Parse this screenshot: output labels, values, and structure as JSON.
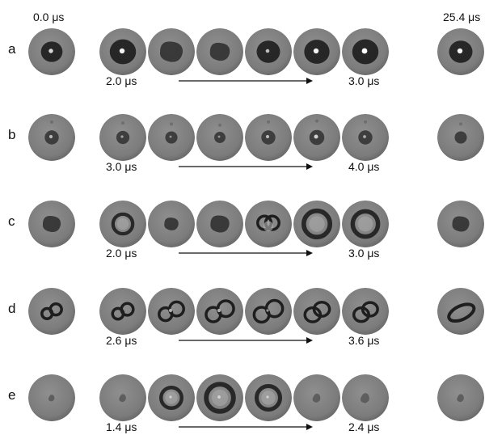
{
  "header": {
    "start_time": "0.0 μs",
    "end_time": "25.4 μs"
  },
  "rows": [
    {
      "label": "a",
      "time_start": "2.0 μs",
      "time_end": "3.0 μs",
      "frames": [
        {
          "kind": "dark",
          "size": 0.46,
          "glint": 0.7
        },
        {
          "kind": "dark",
          "size": 0.56,
          "glint": 0.9
        },
        {
          "kind": "blob",
          "size": 0.48,
          "glint": 0
        },
        {
          "kind": "blob",
          "size": 0.42,
          "glint": 0
        },
        {
          "kind": "dark",
          "size": 0.5,
          "glint": 0.5
        },
        {
          "kind": "dark",
          "size": 0.54,
          "glint": 0.9
        },
        {
          "kind": "dark",
          "size": 0.56,
          "glint": 1.0
        },
        {
          "kind": "dark",
          "size": 0.5,
          "glint": 0.9
        }
      ]
    },
    {
      "label": "b",
      "time_start": "3.0 μs",
      "time_end": "4.0 μs",
      "frames": [
        {
          "kind": "small",
          "size": 0.3,
          "glint": 0.4
        },
        {
          "kind": "small",
          "size": 0.28,
          "glint": 0.2
        },
        {
          "kind": "small",
          "size": 0.26,
          "glint": 0.1
        },
        {
          "kind": "small",
          "size": 0.24,
          "glint": 0.1
        },
        {
          "kind": "small",
          "size": 0.3,
          "glint": 0.4
        },
        {
          "kind": "small",
          "size": 0.32,
          "glint": 0.6
        },
        {
          "kind": "small",
          "size": 0.3,
          "glint": 0.3
        },
        {
          "kind": "small",
          "size": 0.26,
          "glint": 0
        }
      ]
    },
    {
      "label": "c",
      "time_start": "2.0 μs",
      "time_end": "3.0 μs",
      "frames": [
        {
          "kind": "blob",
          "size": 0.38,
          "glint": 0
        },
        {
          "kind": "ring",
          "size": 0.42,
          "glint": 0
        },
        {
          "kind": "blob",
          "size": 0.3,
          "glint": 0
        },
        {
          "kind": "blob",
          "size": 0.4,
          "glint": 0
        },
        {
          "kind": "heart",
          "size": 0.48,
          "glint": 0
        },
        {
          "kind": "ring",
          "size": 0.56,
          "glint": 0
        },
        {
          "kind": "ring",
          "size": 0.54,
          "glint": 0
        },
        {
          "kind": "blob",
          "size": 0.36,
          "glint": 0
        }
      ]
    },
    {
      "label": "d",
      "time_start": "2.6 μs",
      "time_end": "3.6 μs",
      "frames": [
        {
          "kind": "double",
          "size": 0.4,
          "glint": 0
        },
        {
          "kind": "double",
          "size": 0.42,
          "glint": 0
        },
        {
          "kind": "double",
          "size": 0.5,
          "glint": 0.4
        },
        {
          "kind": "double",
          "size": 0.56,
          "glint": 0.4
        },
        {
          "kind": "double",
          "size": 0.58,
          "glint": 0.2
        },
        {
          "kind": "merge",
          "size": 0.6,
          "glint": 0
        },
        {
          "kind": "merge",
          "size": 0.58,
          "glint": 0
        },
        {
          "kind": "streak",
          "size": 0.64,
          "glint": 0
        }
      ]
    },
    {
      "label": "e",
      "time_start": "1.4 μs",
      "time_end": "2.4 μs",
      "frames": [
        {
          "kind": "faint",
          "size": 0.26,
          "glint": 0
        },
        {
          "kind": "faint",
          "size": 0.3,
          "glint": 0
        },
        {
          "kind": "ring",
          "size": 0.44,
          "glint": 0.2
        },
        {
          "kind": "ring",
          "size": 0.58,
          "glint": 0.3
        },
        {
          "kind": "ring",
          "size": 0.5,
          "glint": 0.2
        },
        {
          "kind": "faint",
          "size": 0.34,
          "glint": 0
        },
        {
          "kind": "faint",
          "size": 0.38,
          "glint": 0
        },
        {
          "kind": "faint",
          "size": 0.3,
          "glint": 0
        }
      ]
    }
  ]
}
